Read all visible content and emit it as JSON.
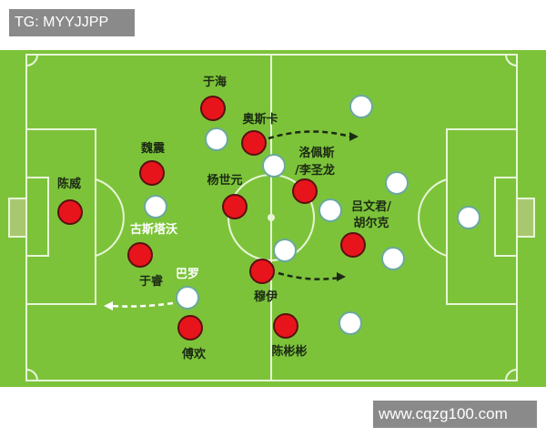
{
  "watermarks": {
    "top": "TG: MYYJJPP",
    "bottom": "www.cqzg100.com"
  },
  "colors": {
    "pitch": "#7cc33a",
    "red_team": "#e8141b",
    "white_team": "#ffffff",
    "lines": "#e8f5d8"
  },
  "labels": {
    "chenwei": "陈威",
    "weizhen": "魏震",
    "yurui": "于睿",
    "fuhuan": "傅欢",
    "yuhai": "于海",
    "aosika": "奥斯卡",
    "yangshiyuan": "杨世元",
    "muyi": "穆伊",
    "chenbinbin": "陈彬彬",
    "luopeisi_1": "洛佩斯",
    "luopeisi_2": "/李圣龙",
    "lvwenjun_1": "吕文君/",
    "lvwenjun_2": "胡尔克",
    "gusitawo": "古斯塔沃",
    "baluo": "巴罗"
  }
}
